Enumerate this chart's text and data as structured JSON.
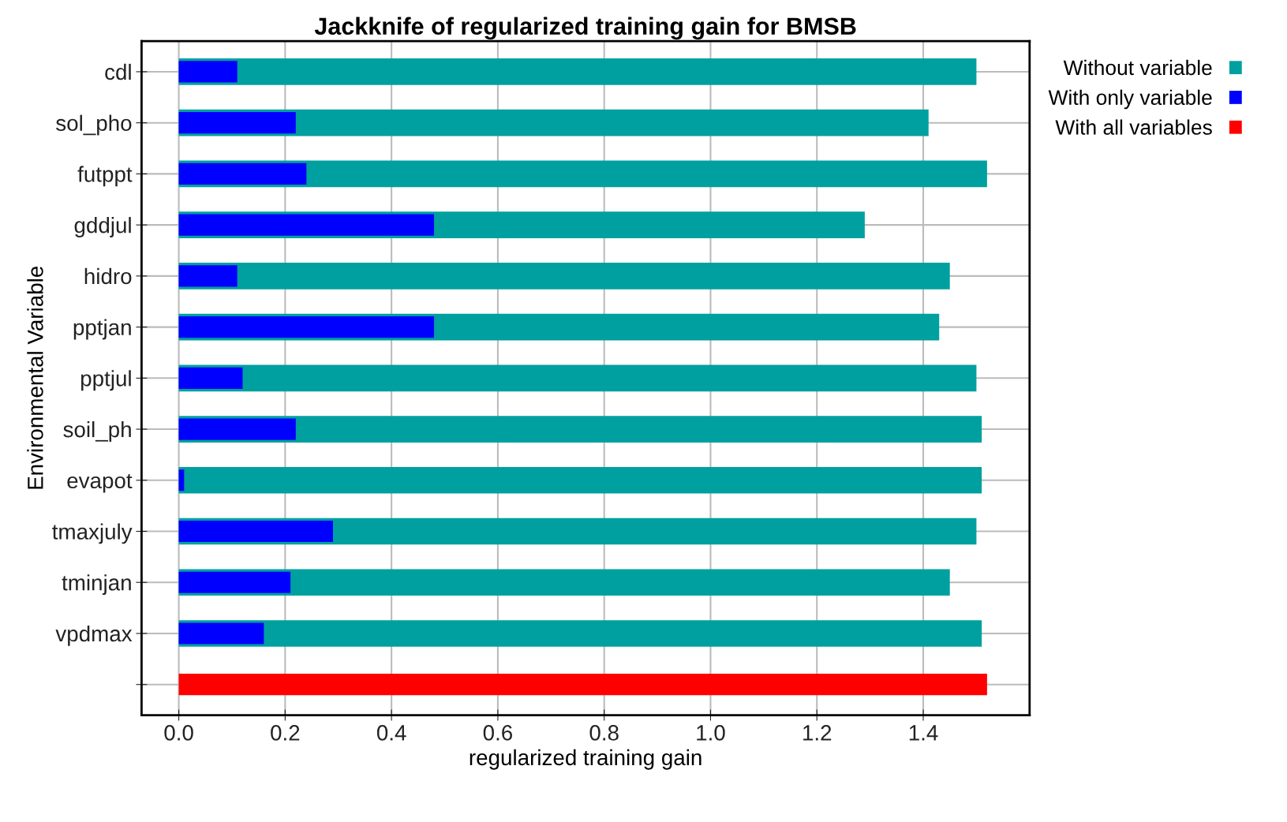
{
  "chart_data": {
    "type": "bar",
    "orientation": "horizontal",
    "stacked": false,
    "title": "Jackknife of regularized training gain for BMSB",
    "xlabel": "regularized training gain",
    "ylabel": "Environmental Variable",
    "categories": [
      "cdl",
      "sol_pho",
      "futppt",
      "gddjul",
      "hidro",
      "pptjan",
      "pptjul",
      "soil_ph",
      "evapot",
      "tmaxjuly",
      "tminjan",
      "vpdmax",
      null
    ],
    "series": [
      {
        "name": "Without variable",
        "color": "#00a0a0",
        "values": [
          1.5,
          1.41,
          1.52,
          1.29,
          1.45,
          1.43,
          1.5,
          1.51,
          1.51,
          1.5,
          1.45,
          1.51,
          null
        ]
      },
      {
        "name": "With only variable",
        "color": "#0000ff",
        "values": [
          0.11,
          0.22,
          0.24,
          0.48,
          0.11,
          0.48,
          0.12,
          0.22,
          0.01,
          0.29,
          0.21,
          0.16,
          null
        ]
      },
      {
        "name": "With all variables",
        "color": "#ff0000",
        "values": [
          null,
          null,
          null,
          null,
          null,
          null,
          null,
          null,
          null,
          null,
          null,
          null,
          1.52
        ]
      }
    ],
    "xlim": [
      -0.07,
      1.6
    ],
    "xticks": [
      {
        "value": 0,
        "label": "0.0"
      },
      0.2,
      0.4,
      0.6,
      0.8,
      {
        "value": 1,
        "label": "1.0"
      },
      1.2,
      1.4
    ],
    "grid": true,
    "legend": "top right"
  }
}
